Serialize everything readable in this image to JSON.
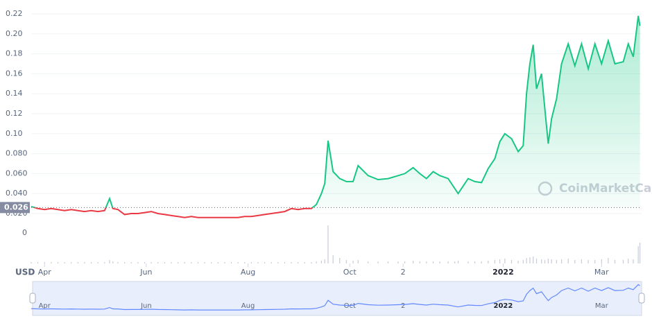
{
  "chart_data": {
    "type": "line",
    "currency_label": "USD",
    "watermark": "CoinMarketCap",
    "x": [
      -8,
      -4,
      0,
      4,
      8,
      12,
      16,
      20,
      24,
      28,
      32,
      36,
      39,
      41,
      44,
      48,
      52,
      56,
      60,
      64,
      68,
      72,
      76,
      80,
      84,
      88,
      92,
      96,
      100,
      104,
      108,
      112,
      116,
      120,
      124,
      128,
      132,
      136,
      140,
      144,
      148,
      152,
      156,
      160,
      163,
      166,
      168,
      170,
      173,
      177,
      181,
      185,
      188,
      194,
      200,
      206,
      212,
      216,
      221,
      225,
      229,
      233,
      237,
      242,
      246,
      248,
      254,
      258,
      262,
      266,
      270,
      273,
      276,
      280,
      284,
      287,
      289,
      291,
      293,
      295,
      298,
      300,
      302,
      304,
      307,
      310,
      314,
      318,
      322,
      326,
      330,
      334,
      338,
      342,
      347,
      350,
      353,
      356,
      357
    ],
    "series": [
      {
        "color": "#16c784",
        "below_color": "#ea3943",
        "values": [
          0.027,
          0.025,
          0.024,
          0.025,
          0.024,
          0.023,
          0.024,
          0.023,
          0.022,
          0.023,
          0.022,
          0.023,
          0.035,
          0.025,
          0.024,
          0.019,
          0.02,
          0.02,
          0.021,
          0.022,
          0.02,
          0.019,
          0.018,
          0.017,
          0.016,
          0.017,
          0.016,
          0.016,
          0.016,
          0.016,
          0.016,
          0.016,
          0.016,
          0.017,
          0.017,
          0.018,
          0.019,
          0.02,
          0.021,
          0.022,
          0.025,
          0.024,
          0.025,
          0.025,
          0.029,
          0.04,
          0.05,
          0.093,
          0.062,
          0.055,
          0.052,
          0.052,
          0.068,
          0.058,
          0.054,
          0.055,
          0.058,
          0.06,
          0.066,
          0.06,
          0.055,
          0.062,
          0.058,
          0.055,
          0.045,
          0.04,
          0.055,
          0.052,
          0.051,
          0.065,
          0.075,
          0.092,
          0.1,
          0.095,
          0.082,
          0.088,
          0.14,
          0.17,
          0.189,
          0.145,
          0.16,
          0.125,
          0.09,
          0.115,
          0.135,
          0.17,
          0.19,
          0.168,
          0.19,
          0.165,
          0.19,
          0.17,
          0.193,
          0.17,
          0.172,
          0.19,
          0.177,
          0.218,
          0.208
        ]
      }
    ],
    "volume": {
      "color": "#c7ccd6",
      "values": [
        2,
        2,
        2,
        2,
        2,
        2,
        2,
        2,
        2,
        2,
        2,
        2,
        5,
        3,
        2,
        2,
        2,
        2,
        2,
        2,
        2,
        2,
        2,
        2,
        2,
        2,
        2,
        2,
        2,
        2,
        2,
        2,
        2,
        2,
        2,
        2,
        2,
        2,
        2,
        2,
        2,
        2,
        2,
        2,
        3,
        4,
        6,
        55,
        12,
        8,
        5,
        4,
        5,
        3,
        3,
        3,
        3,
        3,
        4,
        3,
        3,
        3,
        3,
        3,
        3,
        4,
        3,
        3,
        3,
        4,
        5,
        6,
        7,
        5,
        4,
        5,
        8,
        9,
        10,
        7,
        6,
        5,
        7,
        6,
        5,
        6,
        7,
        5,
        6,
        5,
        5,
        6,
        8,
        5,
        5,
        7,
        6,
        25,
        30
      ],
      "vlim": [
        0,
        60
      ],
      "vticks": [
        0
      ]
    },
    "baseline": 0.026,
    "xlim": [
      -8,
      358
    ],
    "xticks": [
      {
        "value": 0,
        "label": "Apr"
      },
      {
        "value": 61,
        "label": "Jun"
      },
      {
        "value": 122,
        "label": "Aug"
      },
      {
        "value": 183,
        "label": "Oct"
      },
      {
        "value": 215,
        "label": "2"
      },
      {
        "value": 275,
        "label": "2022"
      },
      {
        "value": 334,
        "label": "Mar"
      }
    ],
    "ylim": [
      0.02,
      0.22
    ],
    "yticks": [
      {
        "value": 0.02,
        "label": "0.020"
      },
      {
        "value": 0.04,
        "label": "0.040"
      },
      {
        "value": 0.06,
        "label": "0.060"
      },
      {
        "value": 0.08,
        "label": "0.080"
      },
      {
        "value": 0.1,
        "label": "0.10"
      },
      0.12,
      0.14,
      0.16,
      0.18,
      {
        "value": 0.2,
        "label": "0.20"
      },
      0.22
    ],
    "grid": true
  }
}
